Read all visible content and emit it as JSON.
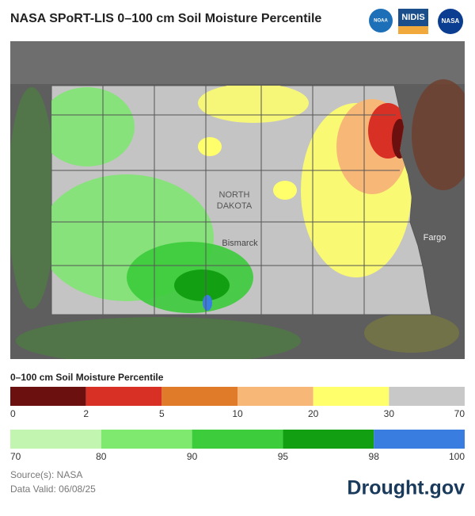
{
  "header": {
    "title": "NASA SPoRT-LIS 0–100 cm Soil Moisture Percentile",
    "logos": [
      "NOAA",
      "NIDIS",
      "NASA"
    ]
  },
  "map": {
    "labels": [
      "NORTH",
      "DAKOTA",
      "Bismarck",
      "Fargo"
    ]
  },
  "legend": {
    "title": "0–100 cm Soil Moisture Percentile",
    "rows": [
      {
        "colors": [
          "#6b0f0f",
          "#d93025",
          "#e07b2a",
          "#f7b877",
          "#ffff6b",
          "#c8c8c8"
        ],
        "ticks": [
          0,
          2,
          5,
          10,
          20,
          30,
          70
        ]
      },
      {
        "colors": [
          "#c2f5b0",
          "#7ee86f",
          "#3ccc3c",
          "#12a012",
          "#3a7de0"
        ],
        "ticks": [
          70,
          80,
          90,
          95,
          98,
          100
        ]
      }
    ]
  },
  "footer": {
    "source": "Source(s): NASA",
    "date": "Data Valid: 06/08/25",
    "brand": "Drought.gov"
  }
}
